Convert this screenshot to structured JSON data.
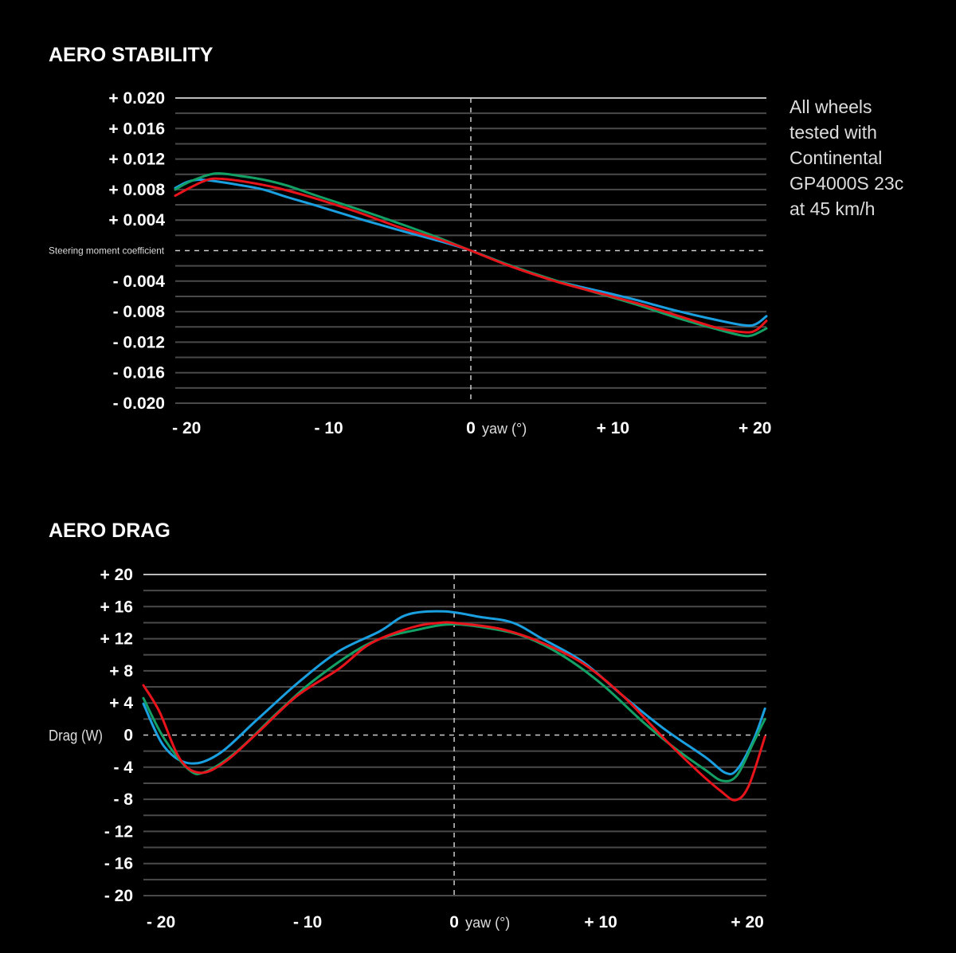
{
  "note": [
    "All wheels",
    "tested with",
    "Continental",
    "GP4000S 23c",
    "at 45 km/h"
  ],
  "colors": {
    "blue": "#1a9fe0",
    "green": "#13a064",
    "red": "#e8141c",
    "grid": "#4a4a4a",
    "zero": "#cccccc"
  },
  "chart_data": [
    {
      "type": "line",
      "title": "AERO STABILITY",
      "ylabel": "Steering moment coefficient",
      "xlabel": "yaw (°)",
      "xlim": [
        -20.8,
        20.8
      ],
      "ylim": [
        -0.02,
        0.02
      ],
      "grid": true,
      "x_ticks": [
        {
          "value": -20,
          "label": "- 20"
        },
        {
          "value": -10,
          "label": "- 10"
        },
        {
          "value": 0,
          "label": "0"
        },
        {
          "value": 10,
          "label": "+ 10"
        },
        {
          "value": 20,
          "label": "+ 20"
        }
      ],
      "y_ticks": [
        {
          "value": 0.02,
          "label": "+ 0.020"
        },
        {
          "value": 0.016,
          "label": "+ 0.016"
        },
        {
          "value": 0.012,
          "label": "+ 0.012"
        },
        {
          "value": 0.008,
          "label": "+ 0.008"
        },
        {
          "value": 0.004,
          "label": "+ 0.004"
        },
        {
          "value": -0.004,
          "label": "- 0.004"
        },
        {
          "value": -0.008,
          "label": "- 0.008"
        },
        {
          "value": -0.012,
          "label": "- 0.012"
        },
        {
          "value": -0.016,
          "label": "- 0.016"
        },
        {
          "value": -0.02,
          "label": "- 0.020"
        }
      ],
      "series": [
        {
          "name": "blue",
          "color": "#1a9fe0",
          "x": [
            -20.8,
            -19.95,
            -19.1,
            -18.0,
            -16.3,
            -14.6,
            -12.9,
            -10.7,
            -7.9,
            -5.1,
            -2.3,
            0,
            2.7,
            6.1,
            9.5,
            11.7,
            14.5,
            17.3,
            19.3,
            20.1,
            20.8
          ],
          "y": [
            0.0082,
            0.009,
            0.0093,
            0.0091,
            0.0086,
            0.008,
            0.007,
            0.0058,
            0.0042,
            0.0027,
            0.0013,
            0,
            -0.0019,
            -0.004,
            -0.0055,
            -0.0065,
            -0.0079,
            -0.0091,
            -0.0098,
            -0.0096,
            -0.0086
          ]
        },
        {
          "name": "green",
          "color": "#13a064",
          "x": [
            -20.8,
            -19.7,
            -18.0,
            -16.3,
            -14.6,
            -12.9,
            -10.7,
            -7.9,
            -5.1,
            -2.3,
            0,
            2.7,
            6.1,
            9.5,
            11.7,
            14.5,
            17.3,
            19.0,
            19.8,
            20.8
          ],
          "y": [
            0.008,
            0.0091,
            0.0101,
            0.0098,
            0.0093,
            0.0085,
            0.0071,
            0.0054,
            0.0036,
            0.0017,
            0,
            -0.0019,
            -0.004,
            -0.0059,
            -0.0071,
            -0.0088,
            -0.0103,
            -0.0111,
            -0.0111,
            -0.0102
          ]
        },
        {
          "name": "red",
          "color": "#e8141c",
          "x": [
            -20.8,
            -19.7,
            -18.5,
            -17.5,
            -15.8,
            -13.6,
            -10.7,
            -7.9,
            -5.1,
            -2.3,
            0,
            2.7,
            6.1,
            9.5,
            11.7,
            14.5,
            17.3,
            19.3,
            20.1,
            20.8
          ],
          "y": [
            0.0072,
            0.0083,
            0.0093,
            0.0094,
            0.009,
            0.0082,
            0.0067,
            0.005,
            0.0031,
            0.0015,
            0,
            -0.002,
            -0.0041,
            -0.0058,
            -0.0069,
            -0.0085,
            -0.0101,
            -0.0107,
            -0.0104,
            -0.0092
          ]
        }
      ]
    },
    {
      "type": "line",
      "title": "AERO DRAG",
      "ylabel": "Drag (W)",
      "xlabel": "yaw (°)",
      "xlim": [
        -21.2,
        21.3
      ],
      "ylim": [
        -20,
        20
      ],
      "grid": true,
      "x_ticks": [
        {
          "value": -20,
          "label": "- 20"
        },
        {
          "value": -10,
          "label": "- 10"
        },
        {
          "value": 0,
          "label": "0"
        },
        {
          "value": 10,
          "label": "+ 10"
        },
        {
          "value": 20,
          "label": "+ 20"
        }
      ],
      "y_ticks": [
        {
          "value": 20,
          "label": "+ 20"
        },
        {
          "value": 16,
          "label": "+ 16"
        },
        {
          "value": 12,
          "label": "+ 12"
        },
        {
          "value": 8,
          "label": "+ 8"
        },
        {
          "value": 4,
          "label": "+ 4"
        },
        {
          "value": 0,
          "label": "0"
        },
        {
          "value": -4,
          "label": "- 4"
        },
        {
          "value": -8,
          "label": "- 8"
        },
        {
          "value": -12,
          "label": "- 12"
        },
        {
          "value": -16,
          "label": "- 16"
        },
        {
          "value": -20,
          "label": "- 20"
        }
      ],
      "series": [
        {
          "name": "blue",
          "color": "#1a9fe0",
          "x": [
            -21.2,
            -19.8,
            -18.1,
            -16.1,
            -13.4,
            -10.6,
            -7.9,
            -5.1,
            -3.2,
            -0.7,
            1.8,
            4.0,
            6.0,
            8.8,
            11.5,
            14.3,
            17.1,
            18.5,
            19.3,
            20.4,
            21.2
          ],
          "y": [
            3.9,
            -1.4,
            -3.5,
            -2.4,
            2.0,
            6.6,
            10.4,
            12.9,
            15.0,
            15.4,
            14.7,
            14.0,
            12.0,
            9.1,
            4.9,
            0.8,
            -2.7,
            -4.7,
            -4.3,
            -0.7,
            3.3
          ]
        },
        {
          "name": "green",
          "color": "#13a064",
          "x": [
            -21.2,
            -19.8,
            -18.1,
            -17.0,
            -14.8,
            -12.0,
            -9.3,
            -5.7,
            -2.3,
            0,
            2.7,
            4.9,
            7.4,
            10.1,
            12.9,
            15.1,
            17.1,
            18.3,
            19.3,
            20.4,
            21.2
          ],
          "y": [
            4.6,
            -0.4,
            -4.3,
            -4.6,
            -2.0,
            2.9,
            7.2,
            11.5,
            13.2,
            13.8,
            13.2,
            12.2,
            9.9,
            6.3,
            1.6,
            -1.7,
            -4.3,
            -5.7,
            -5.0,
            -1.0,
            2.0
          ]
        },
        {
          "name": "red",
          "color": "#e8141c",
          "x": [
            -21.2,
            -20.1,
            -18.7,
            -17.3,
            -15.6,
            -13.4,
            -10.7,
            -7.9,
            -5.7,
            -2.9,
            -0.9,
            0.4,
            3.2,
            6.0,
            8.8,
            11.5,
            14.3,
            16.5,
            18.2,
            19.2,
            20.1,
            21.2
          ],
          "y": [
            6.2,
            2.9,
            -3.0,
            -4.7,
            -3.3,
            0.3,
            4.9,
            8.2,
            11.4,
            13.4,
            14.0,
            13.9,
            13.2,
            11.5,
            8.9,
            4.9,
            -0.4,
            -4.3,
            -7.0,
            -8.1,
            -6.3,
            -0.2
          ]
        }
      ]
    }
  ]
}
